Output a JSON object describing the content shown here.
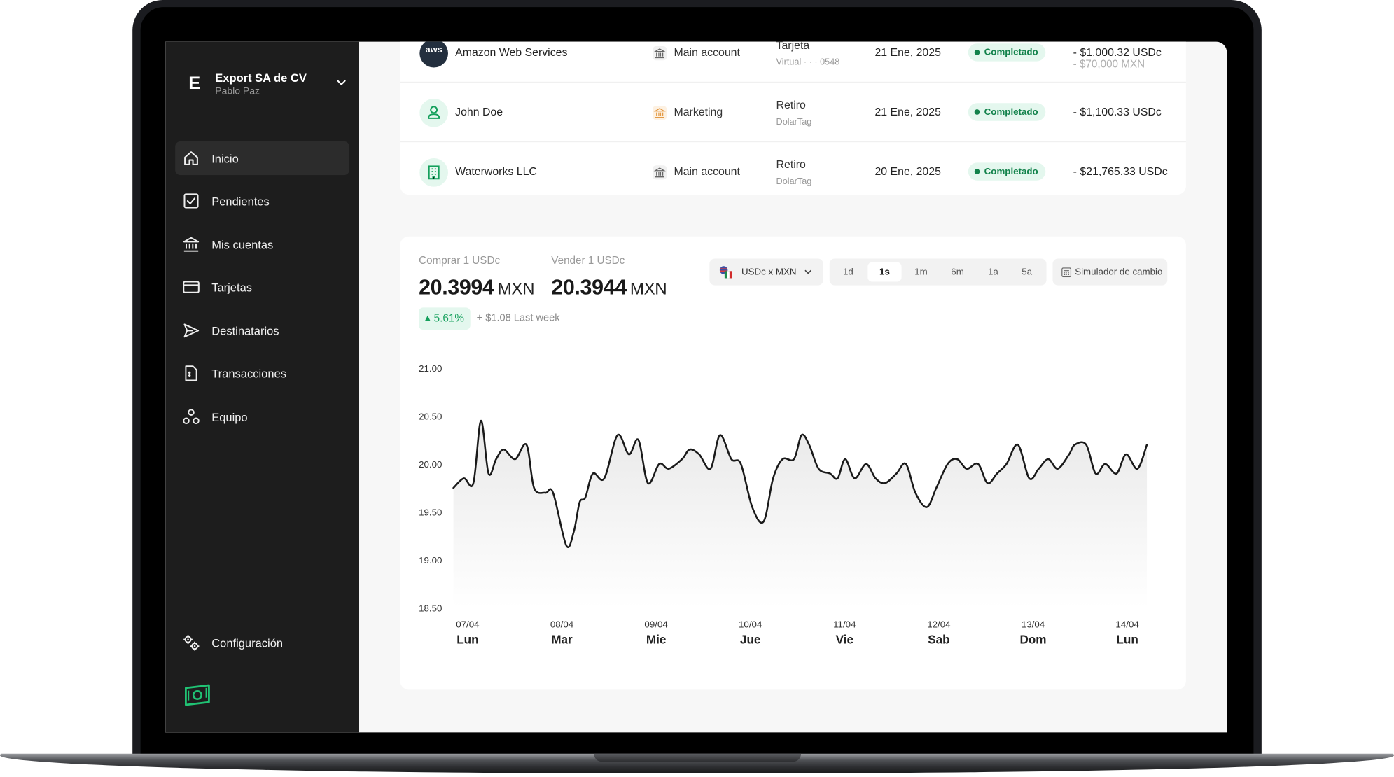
{
  "org": {
    "initial": "E",
    "name": "Export SA de CV",
    "user": "Pablo Paz"
  },
  "nav": {
    "items": [
      {
        "label": "Inicio",
        "icon": "home-icon",
        "active": true
      },
      {
        "label": "Pendientes",
        "icon": "checkbox-icon"
      },
      {
        "label": "Mis cuentas",
        "icon": "bank-icon"
      },
      {
        "label": "Tarjetas",
        "icon": "card-icon"
      },
      {
        "label": "Destinatarios",
        "icon": "send-icon"
      },
      {
        "label": "Transacciones",
        "icon": "receipt-icon"
      },
      {
        "label": "Equipo",
        "icon": "team-icon"
      }
    ],
    "settings_label": "Configuración"
  },
  "transactions": [
    {
      "name": "Amazon Web Services",
      "avatar_text": "aws",
      "account": "Main account",
      "type": "Tarjeta",
      "method": "Virtual · · · 0548",
      "date": "21 Ene, 2025",
      "status": "Completado",
      "amount": "- $1,000.32 USDc",
      "amount_sub": "- $70,000 MXN"
    },
    {
      "name": "John Doe",
      "account": "Marketing",
      "type": "Retiro",
      "method": "DolarTag",
      "date": "21 Ene, 2025",
      "status": "Completado",
      "amount": "- $1,100.33 USDc"
    },
    {
      "name": "Waterworks LLC",
      "account": "Main account",
      "type": "Retiro",
      "method": "DolarTag",
      "date": "20 Ene, 2025",
      "status": "Completado",
      "amount": "- $21,765.33 USDc"
    }
  ],
  "rates": {
    "buy_label": "Comprar 1 USDc",
    "buy_value": "20.3994",
    "sell_label": "Vender 1 USDc",
    "sell_value": "20.3944",
    "unit": "MXN",
    "change_pct": "5.61%",
    "change_text": "+ $1.08 Last week",
    "pair": "USDc x MXN",
    "ranges": [
      "1d",
      "1s",
      "1m",
      "6m",
      "1a",
      "5a"
    ],
    "active_range": "1s",
    "simulator_label": "Simulador de cambio"
  },
  "colors": {
    "accent": "#14a05c",
    "sidebar": "#1d1d1d",
    "status_bg": "#e4f7ee",
    "line": "#1a1a1a"
  },
  "chart_data": {
    "type": "line",
    "ylim": [
      18.5,
      21.0
    ],
    "yticks": [
      "21.00",
      "20.50",
      "20.00",
      "19.50",
      "19.00",
      "18.50"
    ],
    "categories": [
      {
        "date": "07/04",
        "day": "Lun"
      },
      {
        "date": "08/04",
        "day": "Mar"
      },
      {
        "date": "09/04",
        "day": "Mie"
      },
      {
        "date": "10/04",
        "day": "Jue"
      },
      {
        "date": "11/04",
        "day": "Vie"
      },
      {
        "date": "12/04",
        "day": "Sab"
      },
      {
        "date": "13/04",
        "day": "Dom"
      },
      {
        "date": "14/04",
        "day": "Lun"
      }
    ],
    "x": [
      6.85,
      6.96,
      7.06,
      7.14,
      7.22,
      7.3,
      7.38,
      7.5,
      7.62,
      7.7,
      7.82,
      7.9,
      8.04,
      8.12,
      8.18,
      8.24,
      8.32,
      8.44,
      8.58,
      8.7,
      8.8,
      8.9,
      9.02,
      9.12,
      9.26,
      9.34,
      9.44,
      9.56,
      9.66,
      9.78,
      9.88,
      10.0,
      10.12,
      10.22,
      10.32,
      10.44,
      10.52,
      10.6,
      10.7,
      10.82,
      10.9,
      10.98,
      11.08,
      11.2,
      11.3,
      11.4,
      11.52,
      11.62,
      11.72,
      11.84,
      11.94,
      12.06,
      12.16,
      12.26,
      12.38,
      12.48,
      12.58,
      12.68,
      12.8,
      12.92,
      13.02,
      13.12,
      13.22,
      13.34,
      13.4,
      13.52,
      13.62,
      13.72,
      13.84,
      13.94,
      14.06,
      14.16
    ],
    "y": [
      19.75,
      19.85,
      19.8,
      20.45,
      19.9,
      20.05,
      20.15,
      20.05,
      20.2,
      19.75,
      19.7,
      19.7,
      19.15,
      19.3,
      19.6,
      19.65,
      19.9,
      19.85,
      20.3,
      20.1,
      20.25,
      19.8,
      20.0,
      19.95,
      20.05,
      20.15,
      20.1,
      19.95,
      20.3,
      20.05,
      20.0,
      19.55,
      19.4,
      19.85,
      20.05,
      20.05,
      20.3,
      20.2,
      19.95,
      19.9,
      19.85,
      20.05,
      19.85,
      20.0,
      19.85,
      19.8,
      19.9,
      20.0,
      19.7,
      19.55,
      19.75,
      20.0,
      20.05,
      19.95,
      20.0,
      19.8,
      19.9,
      20.0,
      20.2,
      19.85,
      19.95,
      20.05,
      19.95,
      20.1,
      20.2,
      20.2,
      19.9,
      20.0,
      19.9,
      20.1,
      19.95,
      20.2
    ]
  }
}
